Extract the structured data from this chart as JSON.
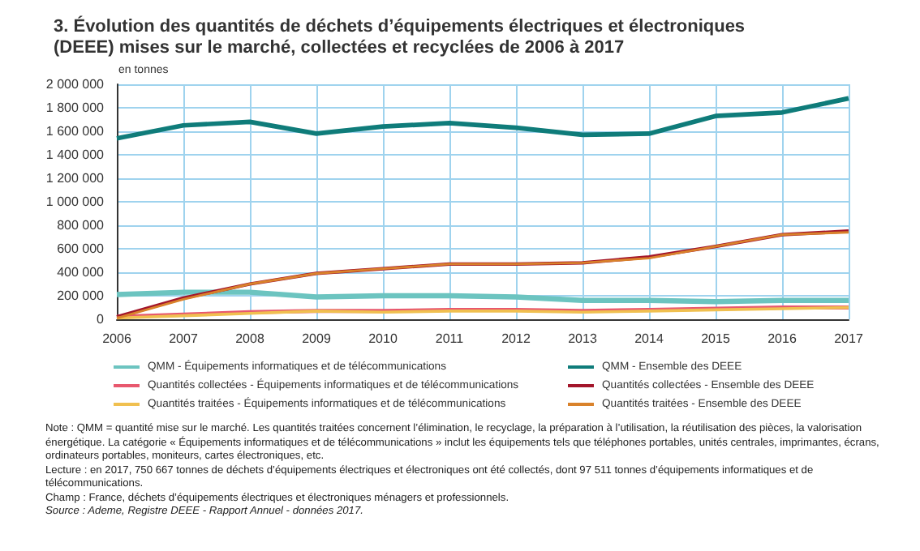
{
  "chart_data": {
    "type": "line",
    "title": "3. Évolution des quantités de déchets d’équipements électriques et électroniques (DEEE) mises sur le marché, collectées et recyclées de 2006 à 2017",
    "ylabel": "en tonnes",
    "categories": [
      "2006",
      "2007",
      "2008",
      "2009",
      "2010",
      "2011",
      "2012",
      "2013",
      "2014",
      "2015",
      "2016",
      "2017"
    ],
    "series": [
      {
        "name": "QMM - Équipements informatiques et de télécommunications",
        "color": "#6cc4c0",
        "values": [
          210000,
          230000,
          230000,
          190000,
          200000,
          200000,
          190000,
          160000,
          160000,
          150000,
          160000,
          160000
        ]
      },
      {
        "name": "QMM - Ensemble des DEEE",
        "color": "#0f7c7a",
        "values": [
          1540000,
          1650000,
          1680000,
          1580000,
          1640000,
          1670000,
          1630000,
          1570000,
          1580000,
          1730000,
          1760000,
          1880000
        ]
      },
      {
        "name": "Quantités collectées - Équipements informatiques et de télécommunications",
        "color": "#e8586e",
        "values": [
          20000,
          40000,
          60000,
          70000,
          70000,
          80000,
          80000,
          70000,
          80000,
          90000,
          100000,
          100000
        ]
      },
      {
        "name": "Quantités collectées - Ensemble des DEEE",
        "color": "#a3162b",
        "values": [
          20000,
          180000,
          300000,
          390000,
          430000,
          470000,
          470000,
          480000,
          530000,
          620000,
          720000,
          750000
        ]
      },
      {
        "name": "Quantités traitées - Équipements informatiques et de télécommunications",
        "color": "#f0c050",
        "values": [
          10000,
          30000,
          50000,
          70000,
          60000,
          70000,
          70000,
          60000,
          70000,
          80000,
          90000,
          100000
        ]
      },
      {
        "name": "Quantités traitées - Ensemble des DEEE",
        "color": "#d9822b",
        "values": [
          10000,
          170000,
          300000,
          390000,
          430000,
          470000,
          470000,
          480000,
          520000,
          620000,
          720000,
          740000
        ]
      }
    ],
    "ylim": [
      0,
      2000000
    ],
    "yticks": [
      0,
      200000,
      400000,
      600000,
      800000,
      1000000,
      1200000,
      1400000,
      1600000,
      1800000,
      2000000
    ],
    "grid": true,
    "legend": "bottom",
    "marker": "none",
    "line_style": "solid",
    "annotations": [
      "Note : QMM = quantité mise sur le marché. Les quantités traitées concernent l’élimination, le recyclage, la préparation à l’utilisation, la réutilisation des pièces, la valorisation énergétique. La catégorie « Équipements informatiques et de télécommunications » inclut les équipements tels que téléphones portables, unités centrales, imprimantes, écrans, ordinateurs portables, moniteurs, cartes électroniques, etc.",
      "Lecture : en 2017, 750 667 tonnes de déchets d’équipements électriques et électroniques ont été collectés, dont 97 511 tonnes d’équipements informatiques et de télécommunications.",
      "Champ : France, déchets d’équipements électriques et électroniques ménagers et professionnels.",
      "Source : Ademe, Registre DEEE - Rapport Annuel - données 2017."
    ]
  }
}
